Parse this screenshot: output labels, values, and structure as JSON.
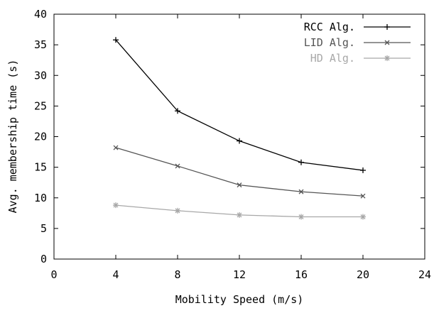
{
  "chart_data": {
    "type": "line",
    "title": "",
    "xlabel": "Mobility Speed (m/s)",
    "ylabel": "Avg. membership time (s)",
    "xlim": [
      0,
      24
    ],
    "ylim": [
      0,
      40
    ],
    "x_ticks": [
      0,
      4,
      8,
      12,
      16,
      20,
      24
    ],
    "y_ticks": [
      0,
      5,
      10,
      15,
      20,
      25,
      30,
      35,
      40
    ],
    "grid": false,
    "legend_position": "top-right",
    "series": [
      {
        "name": "RCC Alg.",
        "color": "#000000",
        "marker": "plus",
        "x": [
          4,
          8,
          12,
          16,
          20
        ],
        "y": [
          35.8,
          24.2,
          19.3,
          15.8,
          14.5
        ]
      },
      {
        "name": "LID Alg.",
        "color": "#555555",
        "marker": "x",
        "x": [
          4,
          8,
          12,
          16,
          20
        ],
        "y": [
          18.2,
          15.2,
          12.1,
          11.0,
          10.3
        ]
      },
      {
        "name": "HD Alg.",
        "color": "#a8a8a8",
        "marker": "star",
        "x": [
          4,
          8,
          12,
          16,
          20
        ],
        "y": [
          8.8,
          7.9,
          7.2,
          6.9,
          6.9
        ]
      }
    ]
  }
}
